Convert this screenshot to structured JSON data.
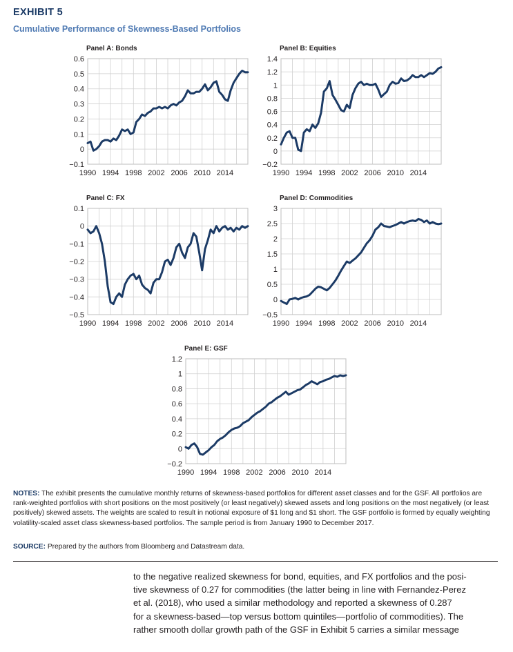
{
  "exhibit": {
    "label": "EXHIBIT 5",
    "title": "Cumulative Performance of Skewness-Based Portfolios"
  },
  "chart_data": [
    {
      "type": "line",
      "title": "Panel A: Bonds",
      "xlabel": "",
      "ylabel": "",
      "xlim": [
        1990,
        2018
      ],
      "ylim": [
        -0.1,
        0.6
      ],
      "yticks": [
        "0.6",
        "0.5",
        "0.4",
        "0.3",
        "0.2",
        "0.1",
        "0",
        "−0.1"
      ],
      "ytick_values": [
        0.6,
        0.5,
        0.4,
        0.3,
        0.2,
        0.1,
        0,
        -0.1
      ],
      "xticks": [
        "1990",
        "1994",
        "1998",
        "2002",
        "2006",
        "2010",
        "2014"
      ],
      "grid": true,
      "color": "#1c3b66",
      "series": [
        {
          "name": "Bonds",
          "x": [
            1990,
            1990.5,
            1991,
            1991.5,
            1992,
            1992.5,
            1993,
            1993.5,
            1994,
            1994.5,
            1995,
            1995.5,
            1996,
            1996.5,
            1997,
            1997.5,
            1998,
            1998.5,
            1999,
            1999.5,
            2000,
            2000.5,
            2001,
            2001.5,
            2002,
            2002.5,
            2003,
            2003.5,
            2004,
            2004.5,
            2005,
            2005.5,
            2006,
            2006.5,
            2007,
            2007.5,
            2008,
            2008.5,
            2009,
            2009.5,
            2010,
            2010.5,
            2011,
            2011.5,
            2012,
            2012.5,
            2013,
            2013.5,
            2014,
            2014.5,
            2015,
            2015.5,
            2016,
            2016.5,
            2017,
            2017.5,
            2018
          ],
          "values": [
            0.04,
            0.05,
            -0.01,
            0.0,
            0.02,
            0.05,
            0.06,
            0.06,
            0.05,
            0.07,
            0.06,
            0.09,
            0.13,
            0.12,
            0.13,
            0.1,
            0.11,
            0.18,
            0.2,
            0.23,
            0.22,
            0.24,
            0.25,
            0.27,
            0.27,
            0.28,
            0.27,
            0.28,
            0.27,
            0.29,
            0.3,
            0.29,
            0.31,
            0.32,
            0.35,
            0.39,
            0.37,
            0.37,
            0.38,
            0.38,
            0.4,
            0.43,
            0.39,
            0.41,
            0.44,
            0.45,
            0.38,
            0.36,
            0.33,
            0.32,
            0.39,
            0.44,
            0.47,
            0.5,
            0.52,
            0.51,
            0.51
          ]
        }
      ]
    },
    {
      "type": "line",
      "title": "Panel B: Equities",
      "xlabel": "",
      "ylabel": "",
      "xlim": [
        1990,
        2018
      ],
      "ylim": [
        -0.2,
        1.4
      ],
      "yticks": [
        "1.4",
        "1.2",
        "1",
        "0.8",
        "0.6",
        "0.4",
        "0.2",
        "0",
        "−0.2"
      ],
      "ytick_values": [
        1.4,
        1.2,
        1,
        0.8,
        0.6,
        0.4,
        0.2,
        0,
        -0.2
      ],
      "xticks": [
        "1990",
        "1994",
        "1998",
        "2002",
        "2006",
        "2010",
        "2014"
      ],
      "grid": true,
      "color": "#1c3b66",
      "series": [
        {
          "name": "Equities",
          "x": [
            1990,
            1990.5,
            1991,
            1991.5,
            1992,
            1992.5,
            1993,
            1993.5,
            1994,
            1994.5,
            1995,
            1995.5,
            1996,
            1996.5,
            1997,
            1997.5,
            1998,
            1998.5,
            1999,
            1999.5,
            2000,
            2000.5,
            2001,
            2001.5,
            2002,
            2002.5,
            2003,
            2003.5,
            2004,
            2004.5,
            2005,
            2005.5,
            2006,
            2006.5,
            2007,
            2007.5,
            2008,
            2008.5,
            2009,
            2009.5,
            2010,
            2010.5,
            2011,
            2011.5,
            2012,
            2012.5,
            2013,
            2013.5,
            2014,
            2014.5,
            2015,
            2015.5,
            2016,
            2016.5,
            2017,
            2017.5,
            2018
          ],
          "values": [
            0.1,
            0.2,
            0.28,
            0.3,
            0.2,
            0.2,
            0.02,
            0.0,
            0.28,
            0.33,
            0.3,
            0.4,
            0.35,
            0.42,
            0.58,
            0.9,
            0.95,
            1.06,
            0.85,
            0.78,
            0.7,
            0.62,
            0.6,
            0.7,
            0.65,
            0.85,
            0.95,
            1.02,
            1.05,
            1.0,
            1.02,
            1.0,
            1.0,
            1.02,
            0.93,
            0.82,
            0.86,
            0.9,
            1.0,
            1.05,
            1.02,
            1.03,
            1.1,
            1.06,
            1.07,
            1.1,
            1.15,
            1.12,
            1.12,
            1.15,
            1.12,
            1.15,
            1.18,
            1.17,
            1.2,
            1.25,
            1.27
          ]
        }
      ]
    },
    {
      "type": "line",
      "title": "Panel C: FX",
      "xlabel": "",
      "ylabel": "",
      "xlim": [
        1990,
        2018
      ],
      "ylim": [
        -0.5,
        0.1
      ],
      "yticks": [
        "0.1",
        "0",
        "−0.1",
        "−0.2",
        "−0.3",
        "−0.4",
        "−0.5"
      ],
      "ytick_values": [
        0.1,
        0,
        -0.1,
        -0.2,
        -0.3,
        -0.4,
        -0.5
      ],
      "xticks": [
        "1990",
        "1994",
        "1998",
        "2002",
        "2006",
        "2010",
        "2014"
      ],
      "grid": true,
      "color": "#1c3b66",
      "series": [
        {
          "name": "FX",
          "x": [
            1990,
            1990.5,
            1991,
            1991.5,
            1992,
            1992.5,
            1993,
            1993.5,
            1994,
            1994.5,
            1995,
            1995.5,
            1996,
            1996.5,
            1997,
            1997.5,
            1998,
            1998.5,
            1999,
            1999.5,
            2000,
            2000.5,
            2001,
            2001.5,
            2002,
            2002.5,
            2003,
            2003.5,
            2004,
            2004.5,
            2005,
            2005.5,
            2006,
            2006.5,
            2007,
            2007.5,
            2008,
            2008.5,
            2009,
            2009.5,
            2010,
            2010.5,
            2011,
            2011.5,
            2012,
            2012.5,
            2013,
            2013.5,
            2014,
            2014.5,
            2015,
            2015.5,
            2016,
            2016.5,
            2017,
            2017.5,
            2018
          ],
          "values": [
            -0.02,
            -0.04,
            -0.03,
            0.0,
            -0.04,
            -0.1,
            -0.2,
            -0.34,
            -0.43,
            -0.44,
            -0.4,
            -0.38,
            -0.4,
            -0.33,
            -0.3,
            -0.28,
            -0.27,
            -0.3,
            -0.28,
            -0.33,
            -0.35,
            -0.36,
            -0.38,
            -0.32,
            -0.3,
            -0.3,
            -0.26,
            -0.2,
            -0.19,
            -0.22,
            -0.18,
            -0.12,
            -0.1,
            -0.15,
            -0.18,
            -0.12,
            -0.1,
            -0.04,
            -0.06,
            -0.15,
            -0.25,
            -0.13,
            -0.08,
            -0.02,
            -0.04,
            0.0,
            -0.03,
            -0.01,
            0.0,
            -0.02,
            -0.01,
            -0.03,
            -0.01,
            -0.02,
            0.0,
            -0.01,
            0.0
          ]
        }
      ]
    },
    {
      "type": "line",
      "title": "Panel D: Commodities",
      "xlabel": "",
      "ylabel": "",
      "xlim": [
        1990,
        2018
      ],
      "ylim": [
        -0.5,
        3
      ],
      "yticks": [
        "3",
        "2.5",
        "2",
        "1.5",
        "1",
        "0.5",
        "0",
        "−0.5"
      ],
      "ytick_values": [
        3,
        2.5,
        2,
        1.5,
        1,
        0.5,
        0,
        -0.5
      ],
      "xticks": [
        "1990",
        "1994",
        "1998",
        "2002",
        "2006",
        "2010",
        "2014"
      ],
      "grid": true,
      "color": "#1c3b66",
      "series": [
        {
          "name": "Commodities",
          "x": [
            1990,
            1990.5,
            1991,
            1991.5,
            1992,
            1992.5,
            1993,
            1993.5,
            1994,
            1994.5,
            1995,
            1995.5,
            1996,
            1996.5,
            1997,
            1997.5,
            1998,
            1998.5,
            1999,
            1999.5,
            2000,
            2000.5,
            2001,
            2001.5,
            2002,
            2002.5,
            2003,
            2003.5,
            2004,
            2004.5,
            2005,
            2005.5,
            2006,
            2006.5,
            2007,
            2007.5,
            2008,
            2008.5,
            2009,
            2009.5,
            2010,
            2010.5,
            2011,
            2011.5,
            2012,
            2012.5,
            2013,
            2013.5,
            2014,
            2014.5,
            2015,
            2015.5,
            2016,
            2016.5,
            2017,
            2017.5,
            2018
          ],
          "values": [
            -0.05,
            -0.1,
            -0.15,
            0.0,
            0.02,
            0.05,
            0.0,
            0.05,
            0.08,
            0.1,
            0.15,
            0.25,
            0.35,
            0.42,
            0.4,
            0.35,
            0.3,
            0.38,
            0.5,
            0.62,
            0.78,
            0.95,
            1.1,
            1.25,
            1.2,
            1.28,
            1.35,
            1.45,
            1.55,
            1.7,
            1.85,
            1.95,
            2.1,
            2.3,
            2.38,
            2.5,
            2.42,
            2.4,
            2.38,
            2.42,
            2.45,
            2.5,
            2.55,
            2.5,
            2.55,
            2.58,
            2.6,
            2.58,
            2.65,
            2.62,
            2.55,
            2.6,
            2.5,
            2.55,
            2.5,
            2.48,
            2.5
          ]
        }
      ]
    },
    {
      "type": "line",
      "title": "Panel E: GSF",
      "xlabel": "",
      "ylabel": "",
      "xlim": [
        1990,
        2018
      ],
      "ylim": [
        -0.2,
        1.2
      ],
      "yticks": [
        "1.2",
        "1",
        "0.8",
        "0.6",
        "0.4",
        "0.2",
        "0",
        "−0.2"
      ],
      "ytick_values": [
        1.2,
        1,
        0.8,
        0.6,
        0.4,
        0.2,
        0,
        -0.2
      ],
      "xticks": [
        "1990",
        "1994",
        "1998",
        "2002",
        "2006",
        "2010",
        "2014"
      ],
      "grid": true,
      "color": "#1c3b66",
      "series": [
        {
          "name": "GSF",
          "x": [
            1990,
            1990.5,
            1991,
            1991.5,
            1992,
            1992.5,
            1993,
            1993.5,
            1994,
            1994.5,
            1995,
            1995.5,
            1996,
            1996.5,
            1997,
            1997.5,
            1998,
            1998.5,
            1999,
            1999.5,
            2000,
            2000.5,
            2001,
            2001.5,
            2002,
            2002.5,
            2003,
            2003.5,
            2004,
            2004.5,
            2005,
            2005.5,
            2006,
            2006.5,
            2007,
            2007.5,
            2008,
            2008.5,
            2009,
            2009.5,
            2010,
            2010.5,
            2011,
            2011.5,
            2012,
            2012.5,
            2013,
            2013.5,
            2014,
            2014.5,
            2015,
            2015.5,
            2016,
            2016.5,
            2017,
            2017.5,
            2018
          ],
          "values": [
            0.02,
            0.0,
            0.05,
            0.07,
            0.02,
            -0.07,
            -0.08,
            -0.05,
            -0.02,
            0.02,
            0.05,
            0.1,
            0.13,
            0.15,
            0.18,
            0.22,
            0.25,
            0.27,
            0.28,
            0.3,
            0.34,
            0.36,
            0.38,
            0.42,
            0.45,
            0.48,
            0.5,
            0.53,
            0.56,
            0.6,
            0.62,
            0.65,
            0.68,
            0.7,
            0.73,
            0.76,
            0.72,
            0.74,
            0.76,
            0.78,
            0.79,
            0.82,
            0.85,
            0.87,
            0.9,
            0.88,
            0.86,
            0.89,
            0.9,
            0.92,
            0.93,
            0.95,
            0.97,
            0.96,
            0.98,
            0.97,
            0.98
          ]
        }
      ]
    }
  ],
  "notes": {
    "label": "NOTES:",
    "text": "The exhibit presents the cumulative monthly returns of skewness-based portfolios for different asset classes and for the GSF. All portfolios are rank-weighted portfolios with short positions on the most positively (or least negatively) skewed assets and long positions on the most negatively (or least positively) skewed assets. The weights are scaled to result in notional exposure of $1 long and $1 short. The GSF portfolio is formed by equally weighting volatility-scaled asset class skewness-based portfolios. The sample period is from January 1990 to December 2017."
  },
  "source": {
    "label": "SOURCE:",
    "text": "Prepared by the authors from Bloomberg and Datastream data."
  },
  "body_lines": [
    "to the negative realized skewness for bond, equities, and FX portfolios and the posi-",
    "tive skewness of 0.27 for commodities (the latter being in line with Fernandez-Perez",
    "et al. (2018), who used a similar methodology and reported a skewness of 0.287",
    "for a skewness-based—top versus bottom quintiles—portfolio of commodities). The",
    "rather smooth dollar growth path of the GSF in Exhibit 5 carries a similar message"
  ]
}
